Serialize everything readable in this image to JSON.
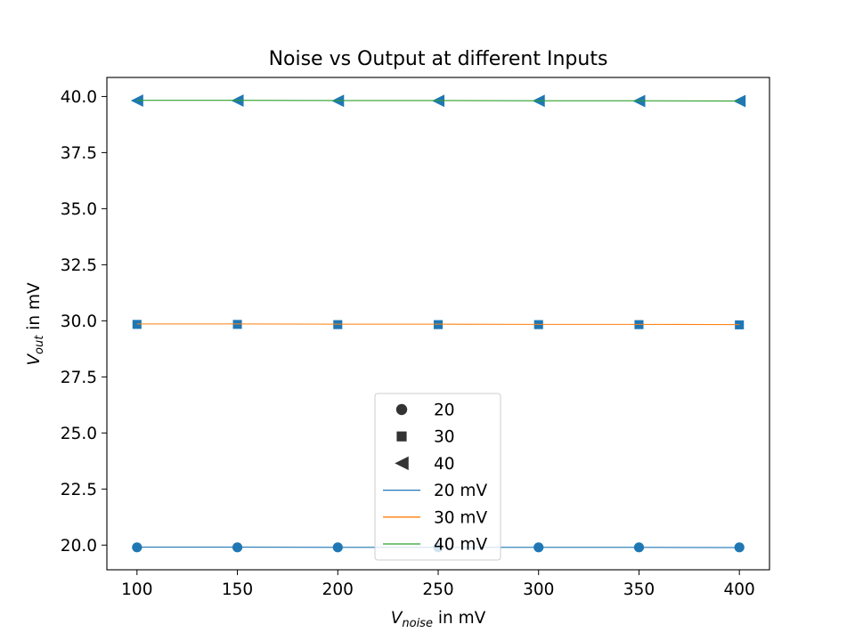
{
  "chart_data": {
    "type": "line",
    "title": "Noise vs Output at different Inputs",
    "xlabel": {
      "base": "V",
      "sub": "noise",
      "rest": " in mV"
    },
    "ylabel": {
      "base": "V",
      "sub": "out",
      "rest": " in mV"
    },
    "x": [
      100,
      150,
      200,
      250,
      300,
      350,
      400
    ],
    "xlim": [
      85,
      415
    ],
    "ylim": [
      18.9,
      40.85
    ],
    "xticks": [
      100,
      150,
      200,
      250,
      300,
      350,
      400
    ],
    "yticks": [
      20.0,
      22.5,
      25.0,
      27.5,
      30.0,
      32.5,
      35.0,
      37.5,
      40.0
    ],
    "grid": false,
    "legend_position": "lower center",
    "scatter_series": [
      {
        "name": "20",
        "marker": "circle",
        "color": "#1f77b4",
        "values": [
          19.9,
          19.9,
          19.9,
          19.9,
          19.9,
          19.9,
          19.9
        ]
      },
      {
        "name": "30",
        "marker": "square",
        "color": "#1f77b4",
        "values": [
          29.84,
          29.84,
          29.83,
          29.83,
          29.83,
          29.83,
          29.82
        ]
      },
      {
        "name": "40",
        "marker": "triangle-left",
        "color": "#1f77b4",
        "values": [
          39.82,
          39.82,
          39.81,
          39.81,
          39.81,
          39.8,
          39.8
        ]
      }
    ],
    "line_series": [
      {
        "name": "20 mV",
        "color": "#1f77b4",
        "values": [
          19.91,
          19.91,
          19.9,
          19.9,
          19.9,
          19.9,
          19.89
        ]
      },
      {
        "name": "30 mV",
        "color": "#ff7f0e",
        "values": [
          29.86,
          29.86,
          29.85,
          29.85,
          29.84,
          29.84,
          29.83
        ]
      },
      {
        "name": "40 mV",
        "color": "#2ca02c",
        "values": [
          39.83,
          39.83,
          39.82,
          39.82,
          39.81,
          39.81,
          39.8
        ]
      }
    ]
  }
}
